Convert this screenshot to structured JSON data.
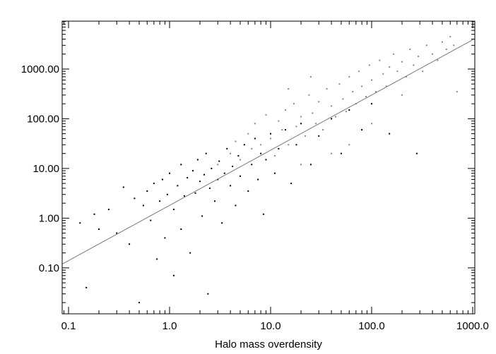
{
  "chart_data": {
    "type": "scatter",
    "x_label": "Halo mass overdensity",
    "log_x": true,
    "log_y": true,
    "xlim": [
      0.0865,
      1050
    ],
    "ylim": [
      0.0119,
      9200
    ],
    "xticks": [
      0.1,
      {
        "value": 1,
        "label": "1.0"
      },
      {
        "value": 10,
        "label": "10.0"
      },
      {
        "value": 100,
        "label": "100.0"
      },
      {
        "value": 1000,
        "label": "1000.0"
      }
    ],
    "yticks": [
      {
        "value": 0.1,
        "label": "0.10"
      },
      {
        "value": 1,
        "label": "1.00"
      },
      {
        "value": 10,
        "label": "10.00"
      },
      {
        "value": 100,
        "label": "100.00"
      },
      {
        "value": 1000,
        "label": "1000.00"
      }
    ],
    "series": [
      {
        "color": "#000000",
        "mode": "points",
        "x": [
          0.13,
          0.15,
          0.18,
          0.2,
          0.25,
          0.3,
          0.35,
          0.4,
          0.45,
          0.5,
          0.55,
          0.6,
          0.65,
          0.7,
          0.75,
          0.8,
          0.85,
          0.9,
          0.95,
          1.0,
          1.1,
          1.1,
          1.2,
          1.3,
          1.3,
          1.4,
          1.5,
          1.6,
          1.7,
          1.8,
          1.9,
          2.0,
          2.1,
          2.2,
          2.3,
          2.4,
          2.5,
          2.6,
          2.8,
          3.0,
          3.1,
          3.3,
          3.5,
          3.7,
          4.0,
          4.2,
          4.5,
          4.8,
          5.0,
          5.5,
          6.0,
          6.5,
          7.0,
          7.5,
          8.0,
          8.5,
          9,
          10,
          11,
          12,
          14,
          16,
          18,
          20,
          25,
          30,
          40,
          50,
          60,
          80,
          100,
          150,
          280
        ],
        "values": [
          0.8,
          0.04,
          1.2,
          0.6,
          1.5,
          0.5,
          4.2,
          0.3,
          2.5,
          0.02,
          1.8,
          3.5,
          0.9,
          5,
          0.15,
          2.2,
          6,
          0.4,
          3,
          8,
          1.5,
          0.07,
          4.5,
          12,
          0.6,
          2.8,
          6.5,
          0.2,
          9,
          3.2,
          15,
          5.5,
          1.1,
          7.5,
          20,
          0.03,
          4,
          10,
          2.2,
          6,
          14,
          0.8,
          8,
          25,
          4.5,
          11,
          1.8,
          18,
          7,
          30,
          3.5,
          12,
          40,
          6,
          20,
          1.2,
          15,
          50,
          8,
          25,
          60,
          5,
          30,
          80,
          12,
          45,
          100,
          20,
          150,
          60,
          200,
          50,
          20
        ]
      },
      {
        "color": "#888888",
        "mode": "points",
        "x": [
          3,
          4,
          4.5,
          5,
          6,
          6.5,
          7,
          8,
          9,
          10,
          11,
          12,
          13,
          14,
          15,
          17,
          18,
          20,
          22,
          24,
          26,
          28,
          30,
          33,
          36,
          40,
          44,
          48,
          52,
          56,
          60,
          65,
          70,
          75,
          80,
          88,
          95,
          100,
          110,
          120,
          130,
          140,
          150,
          165,
          180,
          200,
          220,
          240,
          260,
          290,
          320,
          350,
          400,
          450,
          500,
          550,
          600,
          650,
          700,
          40,
          60,
          100,
          200,
          20,
          25,
          15
        ],
        "values": [
          12,
          20,
          35,
          15,
          50,
          25,
          80,
          30,
          120,
          40,
          18,
          90,
          60,
          150,
          30,
          200,
          70,
          110,
          45,
          300,
          130,
          80,
          220,
          60,
          400,
          180,
          110,
          500,
          250,
          140,
          700,
          350,
          200,
          900,
          450,
          280,
          1200,
          600,
          350,
          1500,
          800,
          450,
          1100,
          2000,
          900,
          1400,
          700,
          2500,
          1200,
          1800,
          900,
          3000,
          2000,
          1500,
          3500,
          2500,
          4500,
          3000,
          350,
          20,
          30,
          80,
          300,
          12,
          700,
          400
        ]
      },
      {
        "color": "#777777",
        "mode": "line",
        "x": [
          0.087,
          1000
        ],
        "values": [
          0.12,
          3870
        ]
      }
    ]
  }
}
